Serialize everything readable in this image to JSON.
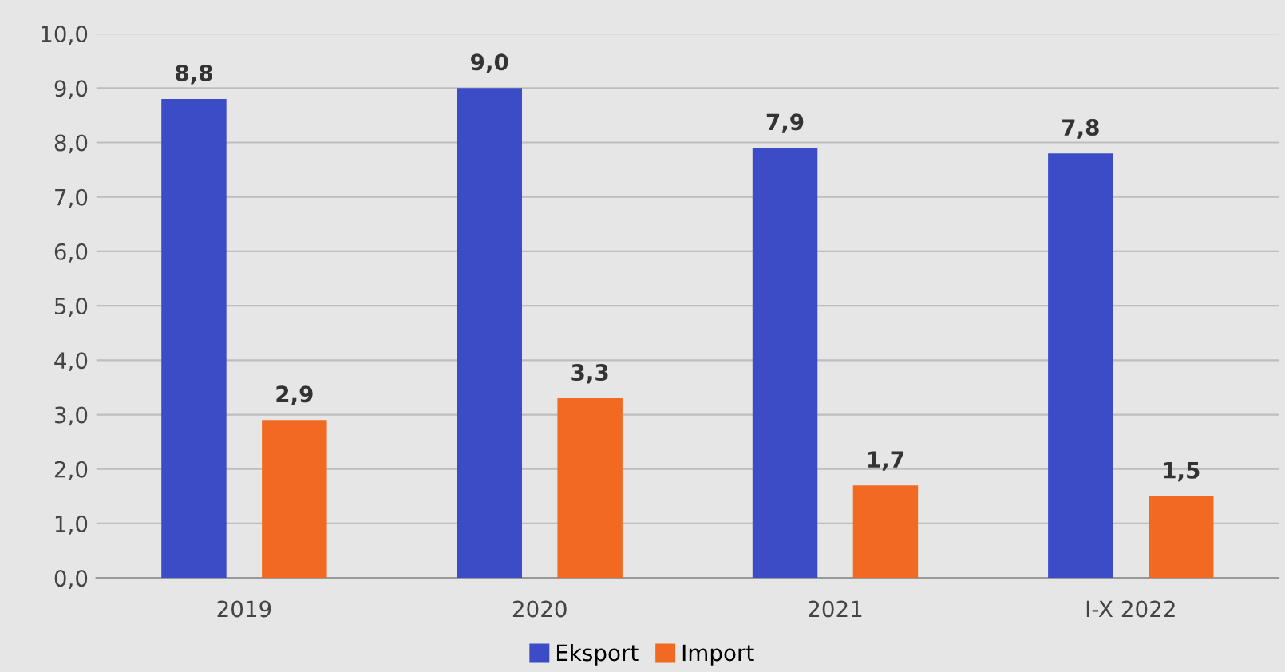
{
  "chart_data": {
    "type": "bar",
    "categories": [
      "2019",
      "2020",
      "2021",
      "I-X 2022"
    ],
    "series": [
      {
        "name": "Eksport",
        "color": "#3b4cc6",
        "values": [
          8.8,
          9.0,
          7.9,
          7.8
        ],
        "value_labels": [
          "8,8",
          "9,0",
          "7,9",
          "7,8"
        ]
      },
      {
        "name": "Import",
        "color": "#f26a22",
        "values": [
          2.9,
          3.3,
          1.7,
          1.5
        ],
        "value_labels": [
          "2,9",
          "3,3",
          "1,7",
          "1,5"
        ]
      }
    ],
    "ylim": [
      0,
      10
    ],
    "yticks": [
      {
        "value": 0,
        "label": "0,0"
      },
      {
        "value": 1,
        "label": "1,0"
      },
      {
        "value": 2,
        "label": "2,0"
      },
      {
        "value": 3,
        "label": "3,0"
      },
      {
        "value": 4,
        "label": "4,0"
      },
      {
        "value": 5,
        "label": "5,0"
      },
      {
        "value": 6,
        "label": "6,0"
      },
      {
        "value": 7,
        "label": "7,0"
      },
      {
        "value": 8,
        "label": "8,0"
      },
      {
        "value": 9,
        "label": "9,0"
      },
      {
        "value": 10,
        "label": "10,0"
      }
    ],
    "grid": "y",
    "legend": "bottom"
  }
}
